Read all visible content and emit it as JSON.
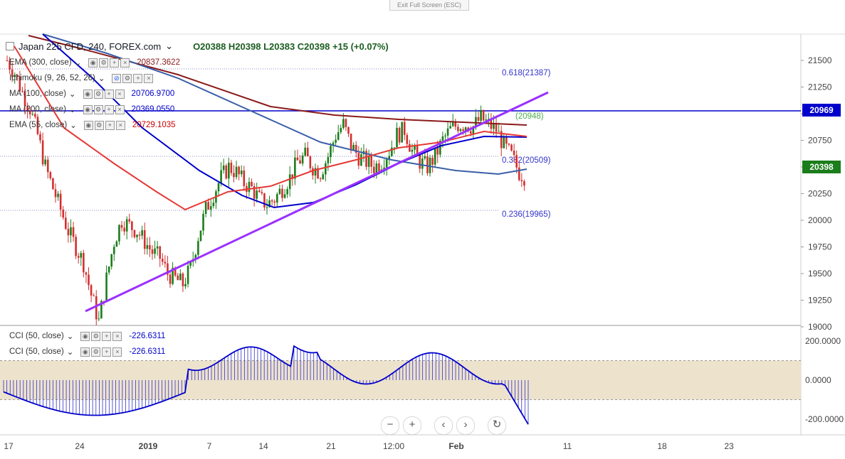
{
  "exit_label": "Exit Full Screen (ESC)",
  "header": {
    "symbol": "Japan 225 CFD, 240, FOREX.com",
    "ohlc": "O20388  H20398  L20383  C20398  +15 (+0.07%)"
  },
  "indicators": [
    {
      "name": "EMA (300, close)",
      "value": "20837.3622",
      "color": "#8b1a1a"
    },
    {
      "name": "Ichimoku (9, 26, 52, 26)",
      "value": "",
      "color": "#333333"
    },
    {
      "name": "MA (100, close)",
      "value": "20706.9700",
      "color": "#0000cc"
    },
    {
      "name": "MA (200, close)",
      "value": "20369.0550",
      "color": "#0000cc"
    },
    {
      "name": "EMA (55, close)",
      "value": "20729.1035",
      "color": "#cc0000"
    }
  ],
  "cci_indicators": [
    {
      "name": "CCI (50, close)",
      "value": "-226.6311"
    },
    {
      "name": "CCI (50, close)",
      "value": "-226.6311"
    }
  ],
  "price_tags": {
    "hline": "20969",
    "last": "20398"
  },
  "fib_labels": [
    {
      "label": "0.618(21387)"
    },
    {
      "label": "0.382(20509)"
    },
    {
      "label": "0.236(19965)"
    },
    {
      "label": "(20948)"
    }
  ],
  "chart_data": {
    "type": "candlestick",
    "y_ticks": [
      "21500",
      "21250",
      "21000",
      "20750",
      "20500",
      "20250",
      "20000",
      "19750",
      "19500",
      "19250",
      "19000"
    ],
    "x_ticks": [
      "17",
      "24",
      "2019",
      "7",
      "14",
      "21",
      "12:00",
      "Feb",
      "11",
      "18",
      "23"
    ],
    "ylim": [
      18850,
      21650
    ],
    "cci_ticks": [
      "200.0000",
      "0.0000",
      "-200.0000"
    ],
    "cci_band": [
      -100,
      100
    ],
    "close_path": [
      21500,
      21380,
      21200,
      21050,
      20800,
      20500,
      20300,
      20100,
      19900,
      19750,
      19600,
      19300,
      19050,
      19450,
      19800,
      20000,
      19950,
      19900,
      19800,
      19700,
      19650,
      19500,
      19450,
      19400,
      19550,
      19850,
      20100,
      20250,
      20400,
      20500,
      20450,
      20350,
      20300,
      20200,
      20150,
      20200,
      20300,
      20400,
      20550,
      20600,
      20500,
      20450,
      20600,
      20800,
      20900,
      20700,
      20600,
      20550,
      20500,
      20550,
      20650,
      20800,
      20850,
      20650,
      20550,
      20500,
      20600,
      20750,
      20850,
      20900,
      20900,
      20880,
      20960,
      20900,
      20850,
      20700,
      20600,
      20450,
      20398
    ],
    "last_price": 20398,
    "cci_last": -226.6311
  }
}
